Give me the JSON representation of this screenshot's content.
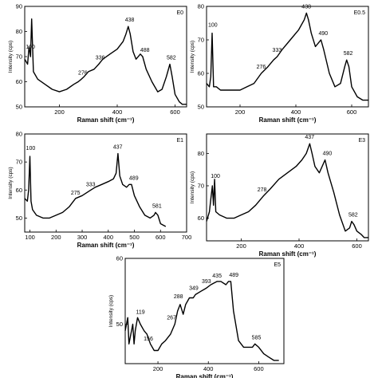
{
  "chart_data": [
    {
      "type": "line",
      "title": "E0",
      "xlabel": "Raman shift (cm⁻¹)",
      "ylabel": "Intensity (cps)",
      "xlim": [
        80,
        640
      ],
      "ylim": [
        50,
        90
      ],
      "xticks": [
        "200",
        "400",
        "600"
      ],
      "yticks": [
        "50",
        "60",
        "70",
        "80",
        "90"
      ],
      "x": [
        80,
        90,
        95,
        100,
        104,
        110,
        125,
        150,
        175,
        200,
        225,
        250,
        265,
        276,
        285,
        300,
        320,
        336,
        350,
        375,
        400,
        420,
        430,
        438,
        445,
        455,
        465,
        480,
        488,
        500,
        520,
        540,
        555,
        570,
        582,
        590,
        600,
        615,
        625,
        640
      ],
      "y": [
        69,
        67,
        74,
        70,
        85,
        64,
        61,
        59,
        57,
        56,
        57,
        59,
        60,
        61,
        62,
        64,
        65,
        67,
        69,
        71,
        73,
        76,
        79,
        82,
        79,
        72,
        69,
        71,
        70,
        65,
        60,
        56,
        57,
        62,
        67,
        62,
        55,
        52,
        51,
        51
      ],
      "peaks": [
        "100",
        "276",
        "336",
        "438",
        "488",
        "582"
      ]
    },
    {
      "type": "line",
      "title": "E0.5",
      "xlabel": "Raman shift (cm⁻¹)",
      "ylabel": "Intensity (cps)",
      "xlim": [
        80,
        660
      ],
      "ylim": [
        50,
        80
      ],
      "xticks": [
        "200",
        "400",
        "600"
      ],
      "yticks": [
        "50",
        "60",
        "70",
        "80"
      ],
      "x": [
        80,
        90,
        95,
        100,
        105,
        115,
        130,
        150,
        175,
        200,
        225,
        250,
        276,
        300,
        320,
        333,
        350,
        380,
        410,
        430,
        438,
        445,
        455,
        470,
        480,
        490,
        500,
        520,
        540,
        560,
        575,
        582,
        590,
        600,
        620,
        640,
        660
      ],
      "y": [
        57,
        56,
        59,
        72,
        56,
        56,
        55,
        55,
        55,
        55,
        56,
        57,
        60,
        62,
        64,
        65,
        67,
        70,
        73,
        76,
        78,
        76,
        72,
        68,
        69,
        70,
        67,
        60,
        56,
        57,
        62,
        64,
        62,
        56,
        53,
        52,
        52
      ],
      "peaks": [
        "100",
        "276",
        "333",
        "438",
        "490",
        "582"
      ]
    },
    {
      "type": "line",
      "title": "E1",
      "xlabel": "Raman shift (cm⁻¹)",
      "ylabel": "Intensity (cps)",
      "xlim": [
        80,
        700
      ],
      "ylim": [
        45,
        80
      ],
      "xticks": [
        "100",
        "200",
        "300",
        "400",
        "500",
        "600",
        "700"
      ],
      "yticks": [
        "50",
        "60",
        "70",
        "80"
      ],
      "x": [
        80,
        90,
        95,
        100,
        104,
        110,
        125,
        150,
        175,
        200,
        225,
        250,
        275,
        300,
        333,
        350,
        375,
        400,
        420,
        430,
        437,
        444,
        455,
        470,
        480,
        489,
        500,
        520,
        540,
        560,
        575,
        581,
        590,
        600,
        620
      ],
      "y": [
        57,
        56,
        60,
        72,
        56,
        53,
        51,
        50,
        50,
        51,
        52,
        54,
        57,
        58,
        60,
        61,
        62,
        63,
        64,
        66,
        73,
        65,
        62,
        61,
        62,
        62,
        58,
        54,
        51,
        50,
        51,
        52,
        51,
        48,
        47
      ],
      "peaks": [
        "100",
        "275",
        "333",
        "437",
        "489",
        "581"
      ]
    },
    {
      "type": "line",
      "title": "E3",
      "xlabel": "Raman shift (cm⁻¹)",
      "ylabel": "Intensity (cps)",
      "xlim": [
        80,
        640
      ],
      "ylim": [
        53,
        86
      ],
      "xticks": [
        "200",
        "400",
        "600"
      ],
      "yticks": [
        "60",
        "70",
        "80"
      ],
      "x": [
        80,
        90,
        95,
        100,
        104,
        108,
        112,
        125,
        150,
        175,
        200,
        225,
        250,
        278,
        300,
        330,
        360,
        390,
        410,
        425,
        437,
        445,
        455,
        470,
        480,
        490,
        500,
        520,
        540,
        560,
        575,
        582,
        590,
        600,
        615,
        625,
        640
      ],
      "y": [
        59,
        62,
        66,
        70,
        64,
        72,
        62,
        61,
        60,
        60,
        61,
        62,
        64,
        67,
        69,
        72,
        74,
        76,
        78,
        80,
        83,
        80,
        76,
        74,
        76,
        78,
        74,
        68,
        61,
        56,
        57,
        59,
        58,
        56,
        55,
        54,
        54
      ],
      "peaks": [
        "100",
        "278",
        "437",
        "490",
        "582"
      ]
    },
    {
      "type": "line",
      "title": "E5",
      "xlabel": "Raman shift (cm⁻¹)",
      "ylabel": "Intensity (cps)",
      "xlim": [
        70,
        700
      ],
      "ylim": [
        44,
        60
      ],
      "xticks": [
        "200",
        "400",
        "600"
      ],
      "yticks": [
        "50",
        "60"
      ],
      "x": [
        70,
        80,
        85,
        90,
        100,
        105,
        110,
        119,
        130,
        145,
        156,
        170,
        185,
        200,
        215,
        230,
        250,
        267,
        278,
        288,
        300,
        310,
        325,
        340,
        349,
        370,
        393,
        410,
        425,
        435,
        450,
        470,
        480,
        489,
        500,
        520,
        540,
        560,
        575,
        585,
        600,
        620,
        640,
        660,
        680
      ],
      "y": [
        49,
        51,
        47,
        48,
        50,
        47,
        49,
        51,
        50,
        49,
        48.5,
        47,
        46,
        46,
        47,
        47.5,
        48.5,
        50,
        52,
        53,
        51.5,
        53,
        54,
        54,
        54.5,
        55,
        55.5,
        56,
        56.3,
        56.5,
        56.5,
        56,
        56.5,
        56.5,
        52,
        47.5,
        46.5,
        46.5,
        46.5,
        47,
        46.5,
        45.5,
        45,
        44.5,
        44.5
      ],
      "peaks": [
        "119",
        "156",
        "267",
        "288",
        "349",
        "393",
        "435",
        "489",
        "585"
      ]
    }
  ]
}
